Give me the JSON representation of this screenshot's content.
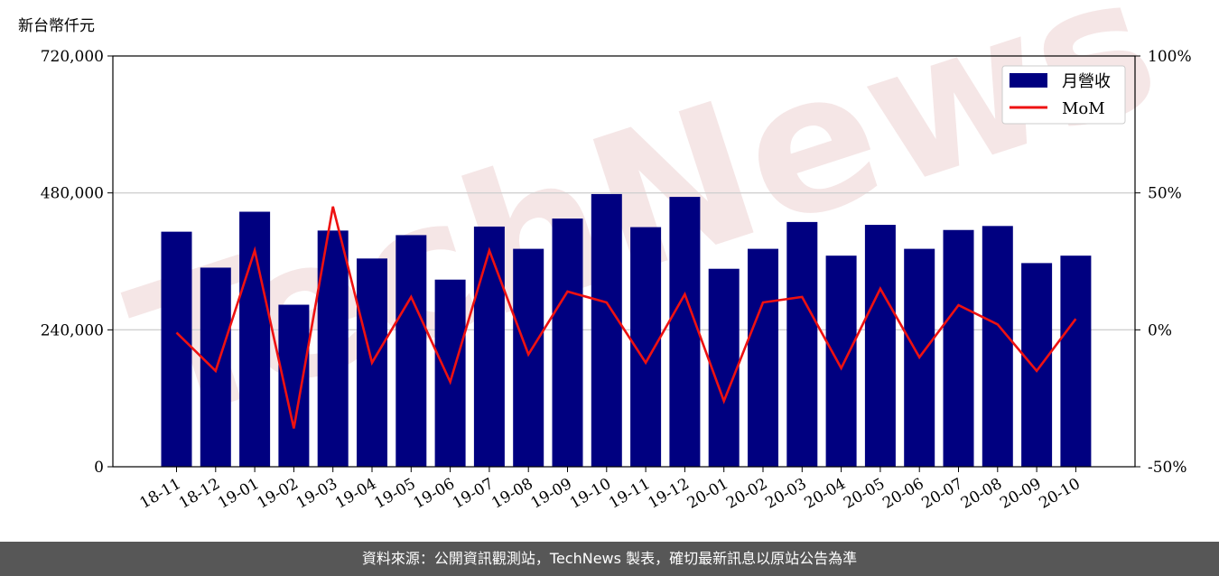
{
  "unit_label": "新台幣仟元",
  "footer_text": "資料來源：公開資訊觀測站，TechNews 製表，確切最新訊息以原站公告為準",
  "watermark": "TechNews",
  "colors": {
    "bar": "#000080",
    "line": "#ee1111",
    "grid": "#d0d0d0",
    "footer_bg": "#575757"
  },
  "chart_data": {
    "type": "bar",
    "categories": [
      "18-11",
      "18-12",
      "19-01",
      "19-02",
      "19-03",
      "19-04",
      "19-05",
      "19-06",
      "19-07",
      "19-08",
      "19-09",
      "19-10",
      "19-11",
      "19-12",
      "20-01",
      "20-02",
      "20-03",
      "20-04",
      "20-05",
      "20-06",
      "20-07",
      "20-08",
      "20-09",
      "20-10"
    ],
    "series": [
      {
        "name": "月營收",
        "kind": "bar",
        "axis": "left",
        "values": [
          412000,
          349000,
          447000,
          284000,
          414000,
          365000,
          406000,
          328000,
          421000,
          382000,
          435000,
          478000,
          420000,
          473000,
          347000,
          382000,
          429000,
          370000,
          424000,
          382000,
          415000,
          422000,
          357000,
          370000
        ]
      },
      {
        "name": "MoM",
        "kind": "line",
        "axis": "right",
        "values": [
          -1,
          -15,
          29,
          -36,
          45,
          -12,
          12,
          -19,
          29,
          -9,
          14,
          10,
          -12,
          13,
          -26,
          10,
          12,
          -14,
          15,
          -10,
          9,
          2,
          -15,
          4
        ]
      }
    ],
    "y_left": {
      "range": [
        0,
        720000
      ],
      "ticks": [
        0,
        240000,
        480000,
        720000
      ],
      "tick_labels": [
        "0",
        "240,000",
        "480,000",
        "720,000"
      ]
    },
    "y_right": {
      "range": [
        -50,
        100
      ],
      "ticks": [
        -50,
        0,
        50,
        100
      ],
      "tick_labels": [
        "-50%",
        "0%",
        "50%",
        "100%"
      ]
    },
    "grid": "horizontal",
    "legend": "top-right"
  }
}
